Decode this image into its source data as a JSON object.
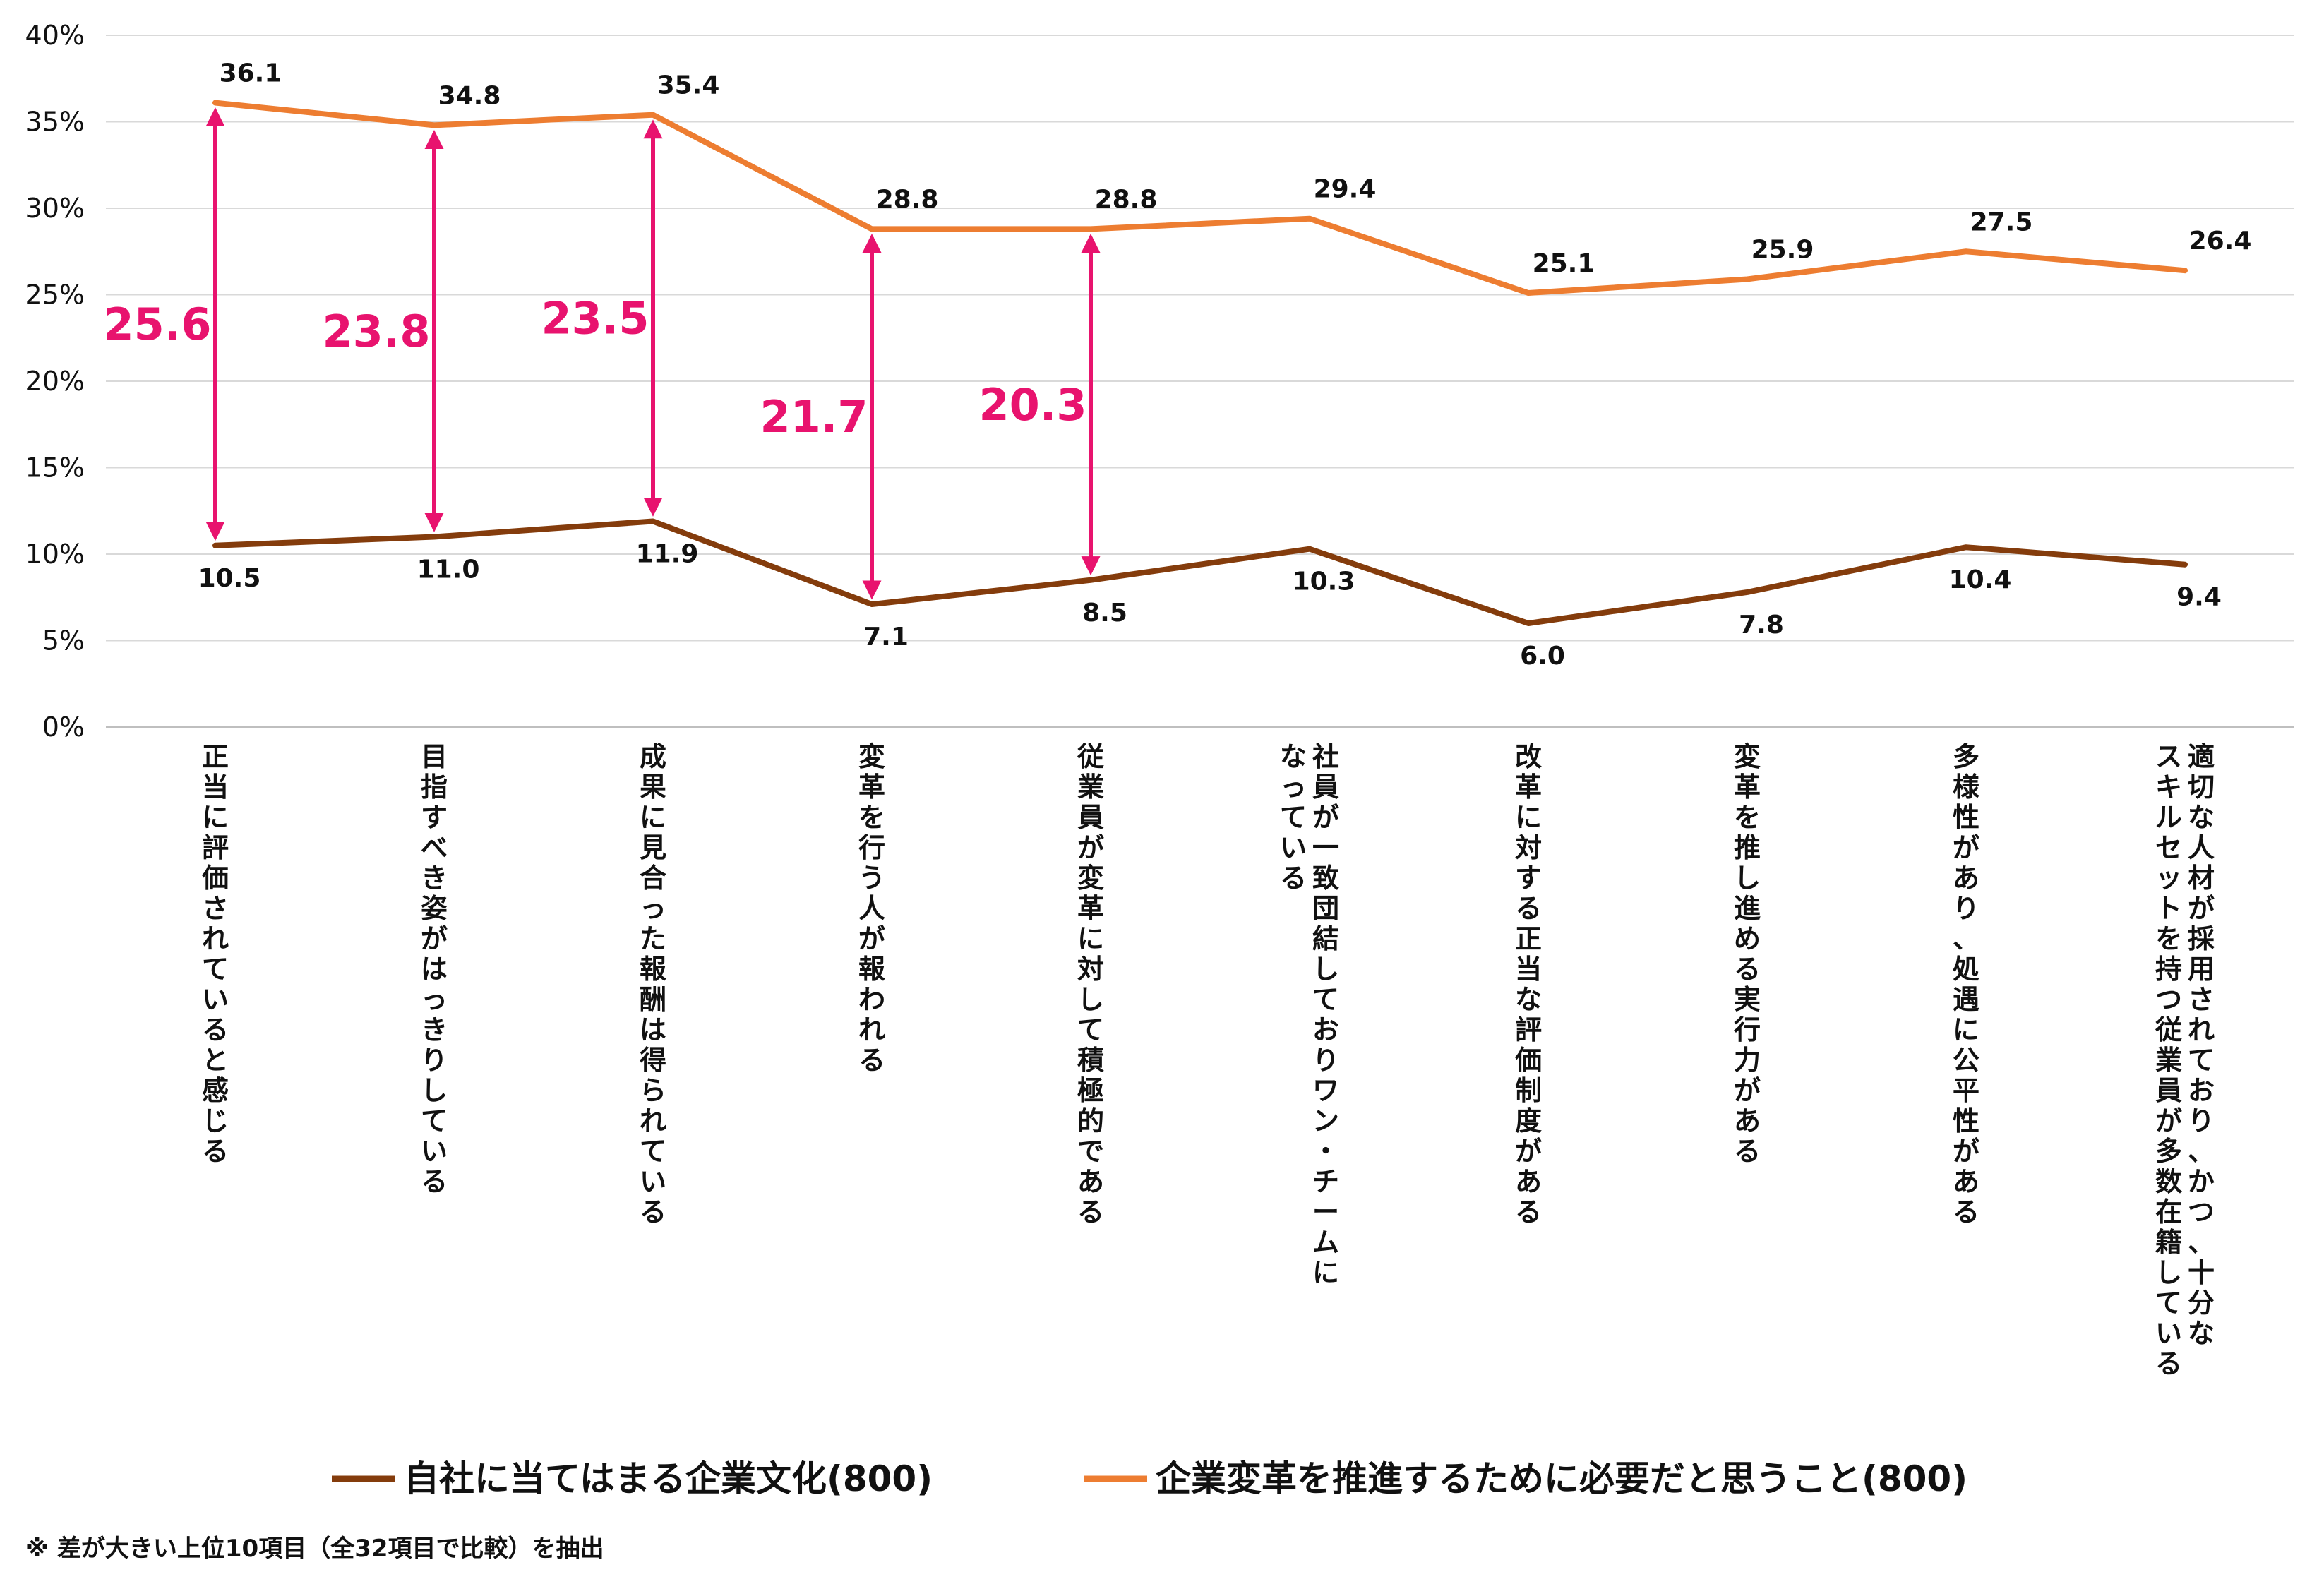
{
  "chart_data": {
    "type": "line",
    "categories": [
      [
        "正当に評価されていると感じる"
      ],
      [
        "目指すべき姿がはっきりしている"
      ],
      [
        "成果に見合った報酬は得られている"
      ],
      [
        "変革を行う人が報われる"
      ],
      [
        "従業員が変革に対して積極的である"
      ],
      [
        "社員が一致団結しておりワン・チームに",
        "なっている"
      ],
      [
        "改革に対する正当な評価制度がある"
      ],
      [
        "変革を推し進める実行力がある"
      ],
      [
        "多様性があり、処遇に公平性がある"
      ],
      [
        "適切な人材が採用されており、かつ、十分な",
        "スキルセットを持つ従業員が多数在籍している"
      ]
    ],
    "series": [
      {
        "name": "自社に当てはまる企業文化(800)",
        "color": "#843c0c",
        "values": [
          10.5,
          11.0,
          11.9,
          7.1,
          8.5,
          10.3,
          6.0,
          7.8,
          10.4,
          9.4
        ],
        "labels": [
          "10.5",
          "11.0",
          "11.9",
          "7.1",
          "8.5",
          "10.3",
          "6.0",
          "7.8",
          "10.4",
          "9.4"
        ]
      },
      {
        "name": "企業変革を推進するために必要だと思うこと(800)",
        "color": "#ed7d31",
        "values": [
          36.1,
          34.8,
          35.4,
          28.8,
          28.8,
          29.4,
          25.1,
          25.9,
          27.5,
          26.4
        ],
        "labels": [
          "36.1",
          "34.8",
          "35.4",
          "28.8",
          "28.8",
          "29.4",
          "25.1",
          "25.9",
          "27.5",
          "26.4"
        ]
      }
    ],
    "gaps": [
      {
        "index": 0,
        "value": "25.6"
      },
      {
        "index": 1,
        "value": "23.8"
      },
      {
        "index": 2,
        "value": "23.5"
      },
      {
        "index": 3,
        "value": "21.7"
      },
      {
        "index": 4,
        "value": "20.3"
      }
    ],
    "gap_color": "#e8136e",
    "ylim": [
      0,
      40
    ],
    "yticks": [
      0,
      5,
      10,
      15,
      20,
      25,
      30,
      35,
      40
    ],
    "ytick_labels": [
      "0%",
      "5%",
      "10%",
      "15%",
      "20%",
      "25%",
      "30%",
      "35%",
      "40%"
    ],
    "grid": true,
    "legend_position": "bottom"
  },
  "note": "※ 差が大きい上位10項目（全32項目で比較）を抽出"
}
